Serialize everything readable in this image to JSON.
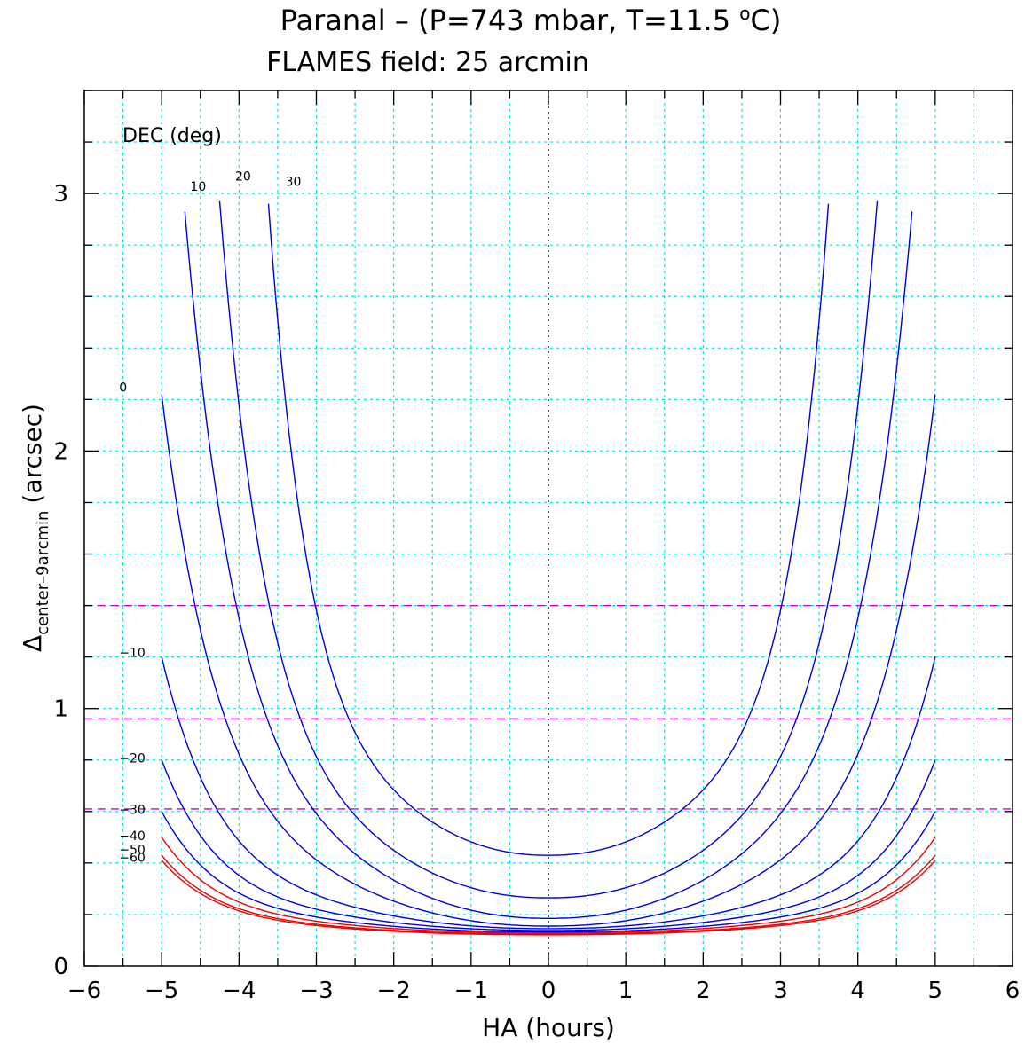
{
  "title_line1": "Paranal – (P=743 mbar, T=11.5 ",
  "title_deg": "o",
  "title_line1_end": "C)",
  "title_line2": "FLAMES field: 25 arcmin",
  "legend_header": "DEC (deg)",
  "colors": {
    "grid": "#00e5e5",
    "blue": "#0000dd",
    "red": "#ee0000",
    "magenta": "#cc00cc",
    "axis": "#000000"
  },
  "chart_data": {
    "type": "line",
    "title": "Paranal – (P=743 mbar, T=11.5 oC)",
    "subtitle": "FLAMES field: 25 arcmin",
    "xlabel": "HA (hours)",
    "ylabel_main": "Δ",
    "ylabel_sub": "center–9arcmin",
    "ylabel_unit": "(arcsec)",
    "xlim": [
      -6,
      6
    ],
    "ylim": [
      0,
      3.4
    ],
    "x_ticks": [
      -6,
      -5,
      -4,
      -3,
      -2,
      -1,
      0,
      1,
      2,
      3,
      4,
      5,
      6
    ],
    "x_tick_labels": [
      "−6",
      "−5",
      "−4",
      "−3",
      "−2",
      "−1",
      "0",
      "1",
      "2",
      "3",
      "4",
      "5",
      "6"
    ],
    "y_ticks": [
      0,
      1,
      2,
      3
    ],
    "y_tick_labels": [
      "0",
      "1",
      "2",
      "3"
    ],
    "grid": true,
    "reference_lines": [
      1.4,
      0.96,
      0.61
    ],
    "series": [
      {
        "name": "30",
        "dec": 30,
        "color": "blue",
        "y0": 0.43,
        "half_width": 3.62,
        "y_end": 2.96,
        "label_pos": [
          -3.4,
          3.03
        ]
      },
      {
        "name": "20",
        "dec": 20,
        "color": "blue",
        "y0": 0.265,
        "half_width": 4.25,
        "y_end": 2.97,
        "label_pos": [
          -4.05,
          3.05
        ]
      },
      {
        "name": "10",
        "dec": 10,
        "color": "blue",
        "y0": 0.185,
        "half_width": 4.7,
        "y_end": 2.93,
        "label_pos": [
          -4.63,
          3.01
        ]
      },
      {
        "name": "0",
        "dec": 0,
        "color": "blue",
        "y0": 0.155,
        "half_width": 5.0,
        "y_end": 2.22,
        "label_pos": [
          -5.55,
          2.23
        ]
      },
      {
        "name": "−10",
        "dec": -10,
        "color": "blue",
        "y0": 0.145,
        "half_width": 5.0,
        "y_end": 1.2,
        "label_pos": [
          -5.55,
          1.2
        ]
      },
      {
        "name": "−20",
        "dec": -20,
        "color": "blue",
        "y0": 0.138,
        "half_width": 5.0,
        "y_end": 0.8,
        "label_pos": [
          -5.55,
          0.79
        ]
      },
      {
        "name": "−30",
        "dec": -30,
        "color": "blue",
        "y0": 0.132,
        "half_width": 5.0,
        "y_end": 0.6,
        "label_pos": [
          -5.55,
          0.59
        ]
      },
      {
        "name": "−40",
        "dec": -40,
        "color": "red",
        "y0": 0.128,
        "half_width": 5.0,
        "y_end": 0.5,
        "label_pos": [
          -5.55,
          0.49
        ]
      },
      {
        "name": "−50",
        "dec": -50,
        "color": "red",
        "y0": 0.124,
        "half_width": 5.0,
        "y_end": 0.43,
        "label_pos": [
          -5.55,
          0.435
        ]
      },
      {
        "name": "−60",
        "dec": -60,
        "color": "red",
        "y0": 0.121,
        "half_width": 5.0,
        "y_end": 0.41,
        "label_pos": [
          -5.55,
          0.405
        ]
      }
    ]
  }
}
